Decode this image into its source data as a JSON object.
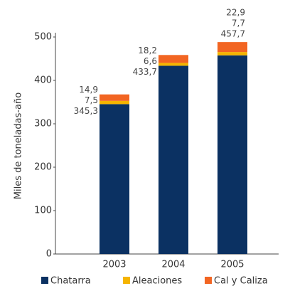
{
  "chart_data": {
    "type": "stacked_bar",
    "y_label": "Miles de toneladas-año",
    "categories": [
      "2003",
      "2004",
      "2005"
    ],
    "series": [
      {
        "name": "Chatarra",
        "color": "#0b3162",
        "values": [
          345.3,
          433.7,
          457.7
        ],
        "value_labels": [
          "345,3",
          "433,7",
          "457,7"
        ]
      },
      {
        "name": "Aleaciones",
        "color": "#f5b400",
        "values": [
          7.5,
          6.6,
          7.7
        ],
        "value_labels": [
          "7,5",
          "6,6",
          "7,7"
        ]
      },
      {
        "name": "Cal y Caliza",
        "color": "#f26522",
        "values": [
          14.9,
          18.2,
          22.9
        ],
        "value_labels": [
          "14,9",
          "18,2",
          "22,9"
        ]
      }
    ],
    "ylim": [
      0,
      500
    ],
    "yticks": [
      0,
      100,
      200,
      300,
      400,
      500
    ],
    "legend": "bottom"
  }
}
